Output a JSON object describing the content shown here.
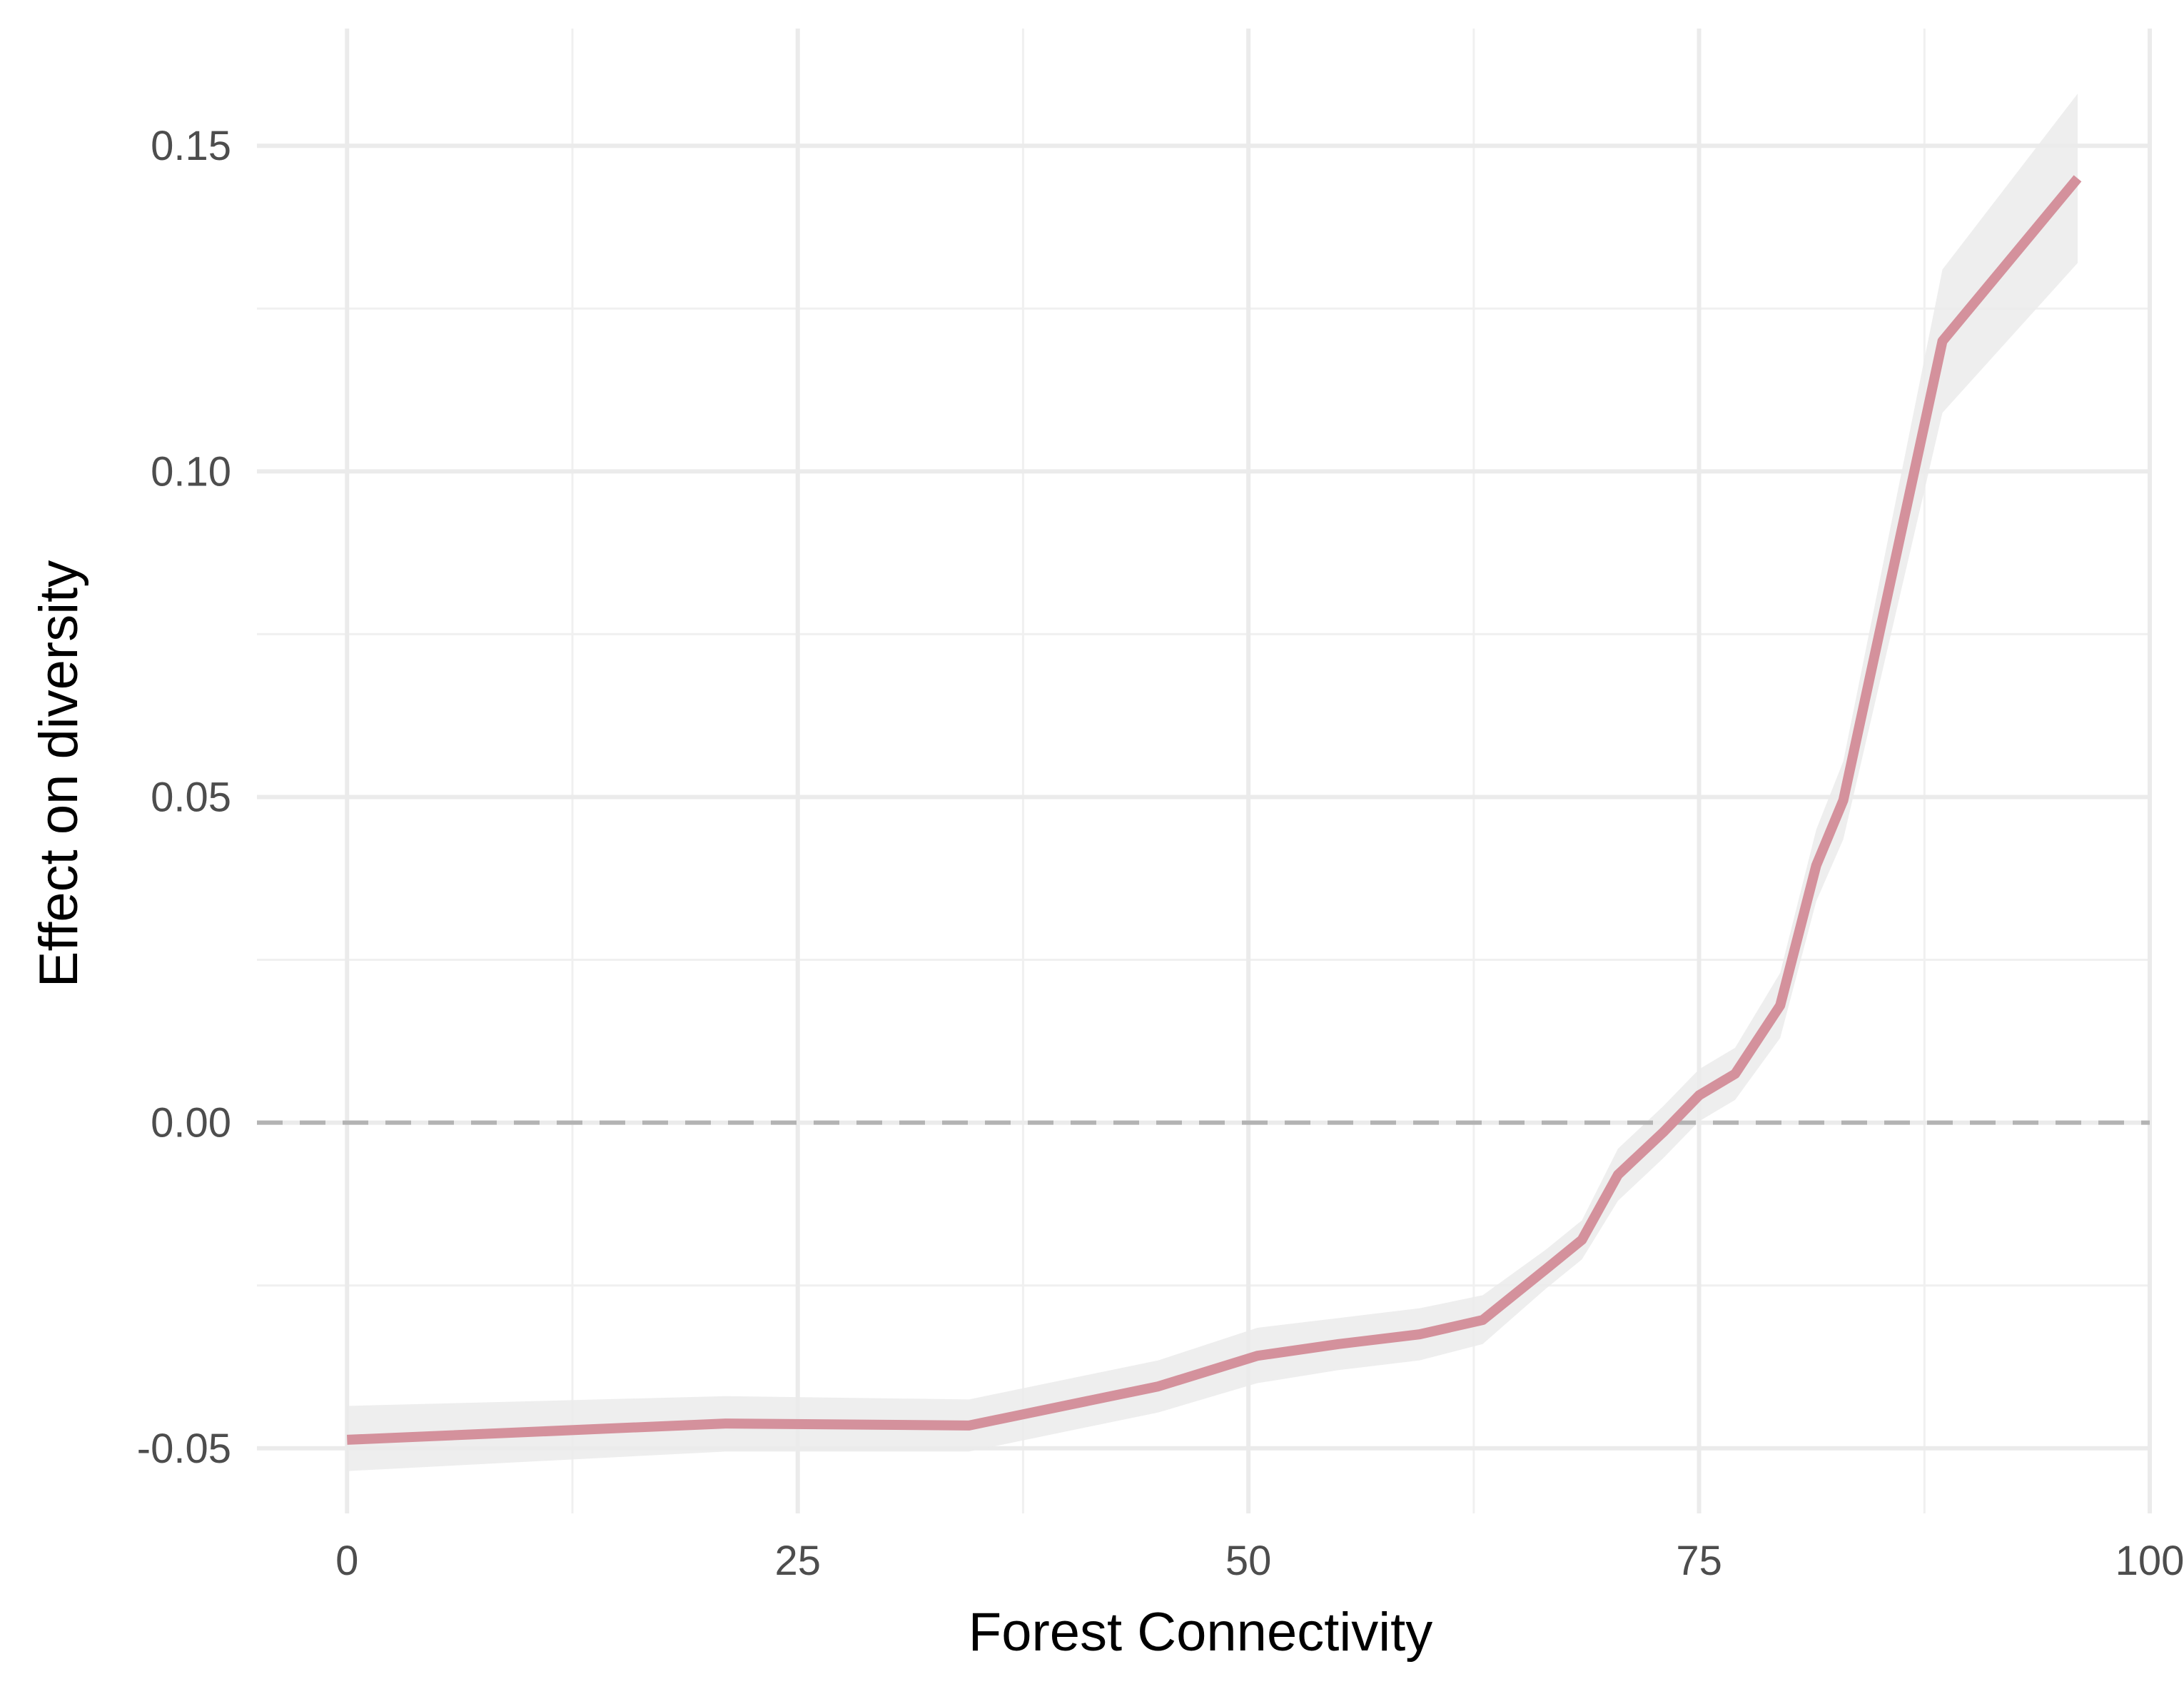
{
  "chart_data": {
    "type": "line",
    "title": "",
    "xlabel": "Forest Connectivity",
    "ylabel": "Effect on diversity",
    "xlim": [
      -5,
      100
    ],
    "ylim": [
      -0.06,
      0.168
    ],
    "x_ticks": [
      0,
      25,
      50,
      75,
      100
    ],
    "x_tick_labels": [
      "0",
      "25",
      "50",
      "75",
      "100"
    ],
    "y_ticks": [
      -0.05,
      0.0,
      0.05,
      0.1,
      0.15
    ],
    "y_tick_labels": [
      "-0.05",
      "0.00",
      "0.05",
      "0.10",
      "0.15"
    ],
    "x_minor_ticks": [
      12.5,
      37.5,
      62.5,
      87.5
    ],
    "y_minor_ticks": [
      -0.025,
      0.025,
      0.075,
      0.125
    ],
    "grid": true,
    "reference_line": {
      "y": 0,
      "style": "dashed",
      "color": "#b3b3b3"
    },
    "line_color": "#d4919c",
    "ribbon_color": "#ebebeb",
    "series": [
      {
        "x": [
          0,
          21,
          34.5,
          45,
          50.5,
          55,
          59.5,
          63,
          66.5,
          68.5,
          70.5,
          73,
          75,
          77,
          79.5,
          81.5,
          83,
          88.5,
          96
        ],
        "values": [
          -0.0487,
          -0.0462,
          -0.0465,
          -0.0405,
          -0.0358,
          -0.034,
          -0.0325,
          -0.0303,
          -0.0225,
          -0.018,
          -0.008,
          -0.0015,
          0.0042,
          0.0075,
          0.018,
          0.0395,
          0.0495,
          0.12,
          0.145
        ],
        "lower": [
          -0.0535,
          -0.0505,
          -0.0505,
          -0.0445,
          -0.04,
          -0.038,
          -0.0365,
          -0.034,
          -0.0255,
          -0.021,
          -0.012,
          -0.0055,
          0.0002,
          0.0035,
          0.013,
          0.034,
          0.0435,
          0.109,
          0.132
        ],
        "upper": [
          -0.0435,
          -0.042,
          -0.0425,
          -0.0365,
          -0.0315,
          -0.03,
          -0.0285,
          -0.0265,
          -0.0195,
          -0.015,
          -0.004,
          0.0025,
          0.0082,
          0.0115,
          0.023,
          0.045,
          0.0555,
          0.131,
          0.158
        ]
      }
    ]
  }
}
